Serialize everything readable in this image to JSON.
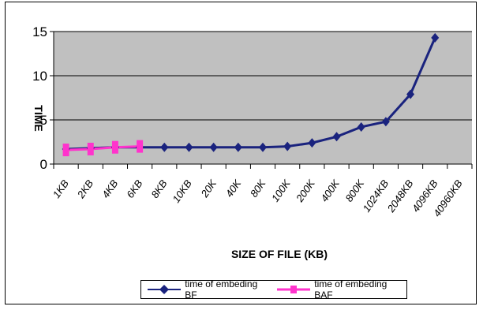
{
  "chart_data": {
    "type": "line",
    "categories": [
      "1KB",
      "2KB",
      "4KB",
      "6KB",
      "8KB",
      "10KB",
      "20K",
      "40K",
      "80K",
      "100K",
      "200K",
      "400K",
      "800K",
      "1024KB",
      "2048KB",
      "4096KB",
      "40960KB"
    ],
    "series": [
      {
        "name": "time of embeding BF",
        "color": "#1a237e",
        "marker": "diamond",
        "values": [
          1.7,
          1.8,
          1.9,
          1.9,
          1.9,
          1.9,
          1.9,
          1.9,
          1.9,
          2.0,
          2.4,
          3.1,
          4.2,
          4.8,
          7.9,
          14.3,
          null
        ]
      },
      {
        "name": "time of embeding BAF",
        "color": "#ff33cc",
        "marker": "square",
        "values": [
          1.6,
          1.7,
          1.9,
          2.0,
          null,
          null,
          null,
          null,
          null,
          null,
          null,
          null,
          null,
          null,
          null,
          null,
          null
        ]
      }
    ],
    "ylim": [
      0,
      15
    ],
    "yticks": [
      0,
      5,
      10,
      15
    ],
    "xlabel": "SIZE OF FILE (KB)",
    "ylabel": "TIME",
    "grid": true,
    "legend_position": "bottom",
    "plot_background": "#c0c0c0",
    "gridline_color": "#000000"
  }
}
